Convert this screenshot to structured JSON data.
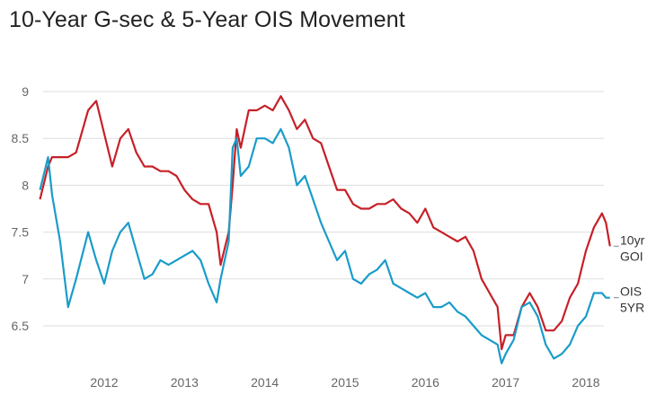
{
  "title": "10-Year G-sec & 5-Year OIS Movement",
  "chart_data": {
    "type": "line",
    "title": "10-Year G-sec & 5-Year OIS Movement",
    "xlabel": "",
    "ylabel": "",
    "xlim": [
      2011.2,
      2018.4
    ],
    "ylim": [
      6.0,
      9.5
    ],
    "x_ticks": [
      "2012",
      "2013",
      "2014",
      "2015",
      "2016",
      "2017",
      "2018"
    ],
    "x_tick_values": [
      2012,
      2013,
      2014,
      2015,
      2016,
      2017,
      2018
    ],
    "y_ticks": [
      "6.5",
      "7",
      "7.5",
      "8",
      "8.5",
      "9"
    ],
    "y_tick_values": [
      6.5,
      7,
      7.5,
      8,
      8.5,
      9
    ],
    "grid": "horizontal",
    "legend": "end-of-line labels",
    "series": [
      {
        "name": "10yr GOI",
        "end_label": [
          "10yr",
          "GOI"
        ],
        "color": "#c62027",
        "x": [
          2011.2,
          2011.3,
          2011.35,
          2011.45,
          2011.55,
          2011.65,
          2011.8,
          2011.9,
          2012.0,
          2012.1,
          2012.2,
          2012.3,
          2012.4,
          2012.5,
          2012.6,
          2012.7,
          2012.8,
          2012.9,
          2013.0,
          2013.1,
          2013.2,
          2013.3,
          2013.4,
          2013.45,
          2013.55,
          2013.6,
          2013.65,
          2013.7,
          2013.8,
          2013.9,
          2014.0,
          2014.1,
          2014.2,
          2014.3,
          2014.4,
          2014.5,
          2014.6,
          2014.7,
          2014.8,
          2014.9,
          2015.0,
          2015.1,
          2015.2,
          2015.3,
          2015.4,
          2015.5,
          2015.6,
          2015.7,
          2015.8,
          2015.9,
          2016.0,
          2016.1,
          2016.2,
          2016.3,
          2016.4,
          2016.5,
          2016.6,
          2016.7,
          2016.8,
          2016.9,
          2016.95,
          2017.0,
          2017.1,
          2017.2,
          2017.3,
          2017.4,
          2017.5,
          2017.6,
          2017.7,
          2017.8,
          2017.9,
          2018.0,
          2018.1,
          2018.2,
          2018.25,
          2018.3
        ],
        "y": [
          7.85,
          8.2,
          8.3,
          8.3,
          8.3,
          8.35,
          8.8,
          8.9,
          8.55,
          8.2,
          8.5,
          8.6,
          8.35,
          8.2,
          8.2,
          8.15,
          8.15,
          8.1,
          7.95,
          7.85,
          7.8,
          7.8,
          7.5,
          7.15,
          7.5,
          8.0,
          8.6,
          8.4,
          8.8,
          8.8,
          8.85,
          8.8,
          8.95,
          8.8,
          8.6,
          8.7,
          8.5,
          8.45,
          8.2,
          7.95,
          7.95,
          7.8,
          7.75,
          7.75,
          7.8,
          7.8,
          7.85,
          7.75,
          7.7,
          7.6,
          7.75,
          7.55,
          7.5,
          7.45,
          7.4,
          7.45,
          7.3,
          7.0,
          6.85,
          6.7,
          6.25,
          6.4,
          6.4,
          6.7,
          6.85,
          6.7,
          6.45,
          6.45,
          6.55,
          6.8,
          6.95,
          7.3,
          7.55,
          7.7,
          7.6,
          7.35
        ]
      },
      {
        "name": "OIS 5YR",
        "end_label": [
          "OIS",
          "5YR"
        ],
        "color": "#1a9cc9",
        "x": [
          2011.2,
          2011.3,
          2011.35,
          2011.45,
          2011.55,
          2011.65,
          2011.8,
          2011.9,
          2012.0,
          2012.1,
          2012.2,
          2012.3,
          2012.4,
          2012.5,
          2012.6,
          2012.7,
          2012.8,
          2012.9,
          2013.0,
          2013.1,
          2013.2,
          2013.3,
          2013.4,
          2013.45,
          2013.55,
          2013.6,
          2013.65,
          2013.7,
          2013.8,
          2013.9,
          2014.0,
          2014.1,
          2014.2,
          2014.3,
          2014.4,
          2014.5,
          2014.6,
          2014.7,
          2014.8,
          2014.9,
          2015.0,
          2015.1,
          2015.2,
          2015.3,
          2015.4,
          2015.5,
          2015.6,
          2015.7,
          2015.8,
          2015.9,
          2016.0,
          2016.1,
          2016.2,
          2016.3,
          2016.4,
          2016.5,
          2016.6,
          2016.7,
          2016.8,
          2016.9,
          2016.95,
          2017.0,
          2017.1,
          2017.2,
          2017.3,
          2017.4,
          2017.5,
          2017.6,
          2017.7,
          2017.8,
          2017.9,
          2018.0,
          2018.1,
          2018.2,
          2018.25,
          2018.3
        ],
        "y": [
          7.95,
          8.3,
          7.9,
          7.4,
          6.7,
          7.0,
          7.5,
          7.2,
          6.95,
          7.3,
          7.5,
          7.6,
          7.3,
          7.0,
          7.05,
          7.2,
          7.15,
          7.2,
          7.25,
          7.3,
          7.2,
          6.95,
          6.75,
          7.0,
          7.4,
          8.4,
          8.5,
          8.1,
          8.2,
          8.5,
          8.5,
          8.45,
          8.6,
          8.4,
          8.0,
          8.1,
          7.85,
          7.6,
          7.4,
          7.2,
          7.3,
          7.0,
          6.95,
          7.05,
          7.1,
          7.2,
          6.95,
          6.9,
          6.85,
          6.8,
          6.85,
          6.7,
          6.7,
          6.75,
          6.65,
          6.6,
          6.5,
          6.4,
          6.35,
          6.3,
          6.1,
          6.2,
          6.35,
          6.7,
          6.75,
          6.6,
          6.3,
          6.15,
          6.2,
          6.3,
          6.5,
          6.6,
          6.85,
          6.85,
          6.8,
          6.8
        ]
      }
    ]
  }
}
